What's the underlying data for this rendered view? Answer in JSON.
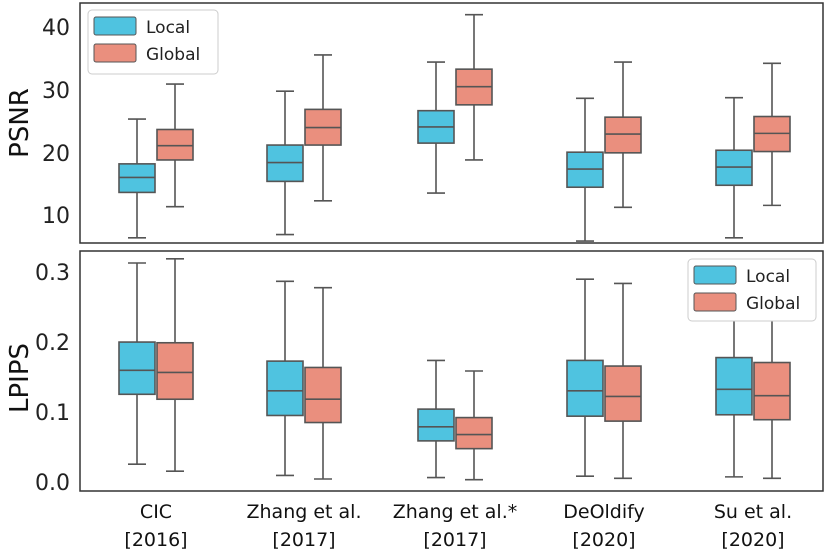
{
  "methods": [
    {
      "name": "CIC",
      "year": "[2016]"
    },
    {
      "name": "Zhang et al.",
      "year": "[2017]"
    },
    {
      "name": "Zhang et al.*",
      "year": "[2017]"
    },
    {
      "name": "DeOldify",
      "year": "[2020]"
    },
    {
      "name": "Su et al.",
      "year": "[2020]"
    }
  ],
  "legend": {
    "local": "Local",
    "global": "Global"
  },
  "colors": {
    "local": "#4fc3e0",
    "global": "#ea8f7e",
    "edge": "#555555",
    "axes": "#333333"
  },
  "chart_data": [
    {
      "type": "box",
      "ylabel": "PSNR",
      "ylim": [
        7,
        44
      ],
      "yticks": [
        "10",
        "20",
        "30",
        "40"
      ],
      "legend_position": "top-left",
      "series": [
        {
          "name": "Local",
          "boxes": [
            {
              "whislo": 7.8,
              "q1": 14.8,
              "med": 17.1,
              "q3": 19.2,
              "whishi": 26.1
            },
            {
              "whislo": 8.3,
              "q1": 16.5,
              "med": 19.4,
              "q3": 22.1,
              "whishi": 30.4
            },
            {
              "whislo": 14.7,
              "q1": 22.4,
              "med": 24.9,
              "q3": 27.4,
              "whishi": 34.9
            },
            {
              "whislo": 7.3,
              "q1": 15.6,
              "med": 18.4,
              "q3": 21.0,
              "whishi": 29.3
            },
            {
              "whislo": 7.8,
              "q1": 15.9,
              "med": 18.7,
              "q3": 21.3,
              "whishi": 29.4
            }
          ]
        },
        {
          "name": "Global",
          "boxes": [
            {
              "whislo": 12.6,
              "q1": 19.8,
              "med": 22.0,
              "q3": 24.5,
              "whishi": 31.5
            },
            {
              "whislo": 13.5,
              "q1": 22.1,
              "med": 24.8,
              "q3": 27.6,
              "whishi": 36.0
            },
            {
              "whislo": 19.8,
              "q1": 28.3,
              "med": 31.1,
              "q3": 33.8,
              "whishi": 42.2
            },
            {
              "whislo": 12.5,
              "q1": 20.9,
              "med": 23.8,
              "q3": 26.4,
              "whishi": 34.9
            },
            {
              "whislo": 12.8,
              "q1": 21.1,
              "med": 23.9,
              "q3": 26.5,
              "whishi": 34.7
            }
          ]
        }
      ]
    },
    {
      "type": "box",
      "ylabel": "LPIPS",
      "ylim": [
        -0.01,
        0.33
      ],
      "yticks": [
        "0.0",
        "0.1",
        "0.2",
        "0.3"
      ],
      "legend_position": "top-right",
      "series": [
        {
          "name": "Local",
          "boxes": [
            {
              "whislo": 0.028,
              "q1": 0.127,
              "med": 0.161,
              "q3": 0.201,
              "whishi": 0.313
            },
            {
              "whislo": 0.012,
              "q1": 0.097,
              "med": 0.132,
              "q3": 0.174,
              "whishi": 0.287
            },
            {
              "whislo": 0.009,
              "q1": 0.061,
              "med": 0.081,
              "q3": 0.106,
              "whishi": 0.175
            },
            {
              "whislo": 0.011,
              "q1": 0.096,
              "med": 0.132,
              "q3": 0.175,
              "whishi": 0.29
            },
            {
              "whislo": 0.01,
              "q1": 0.098,
              "med": 0.134,
              "q3": 0.179,
              "whishi": 0.302
            }
          ]
        },
        {
          "name": "Global",
          "boxes": [
            {
              "whislo": 0.018,
              "q1": 0.12,
              "med": 0.158,
              "q3": 0.2,
              "whishi": 0.319
            },
            {
              "whislo": 0.007,
              "q1": 0.087,
              "med": 0.12,
              "q3": 0.165,
              "whishi": 0.278
            },
            {
              "whislo": 0.006,
              "q1": 0.05,
              "med": 0.07,
              "q3": 0.094,
              "whishi": 0.16
            },
            {
              "whislo": 0.008,
              "q1": 0.089,
              "med": 0.124,
              "q3": 0.167,
              "whishi": 0.284
            },
            {
              "whislo": 0.008,
              "q1": 0.091,
              "med": 0.125,
              "q3": 0.172,
              "whishi": 0.296
            }
          ]
        }
      ]
    }
  ]
}
